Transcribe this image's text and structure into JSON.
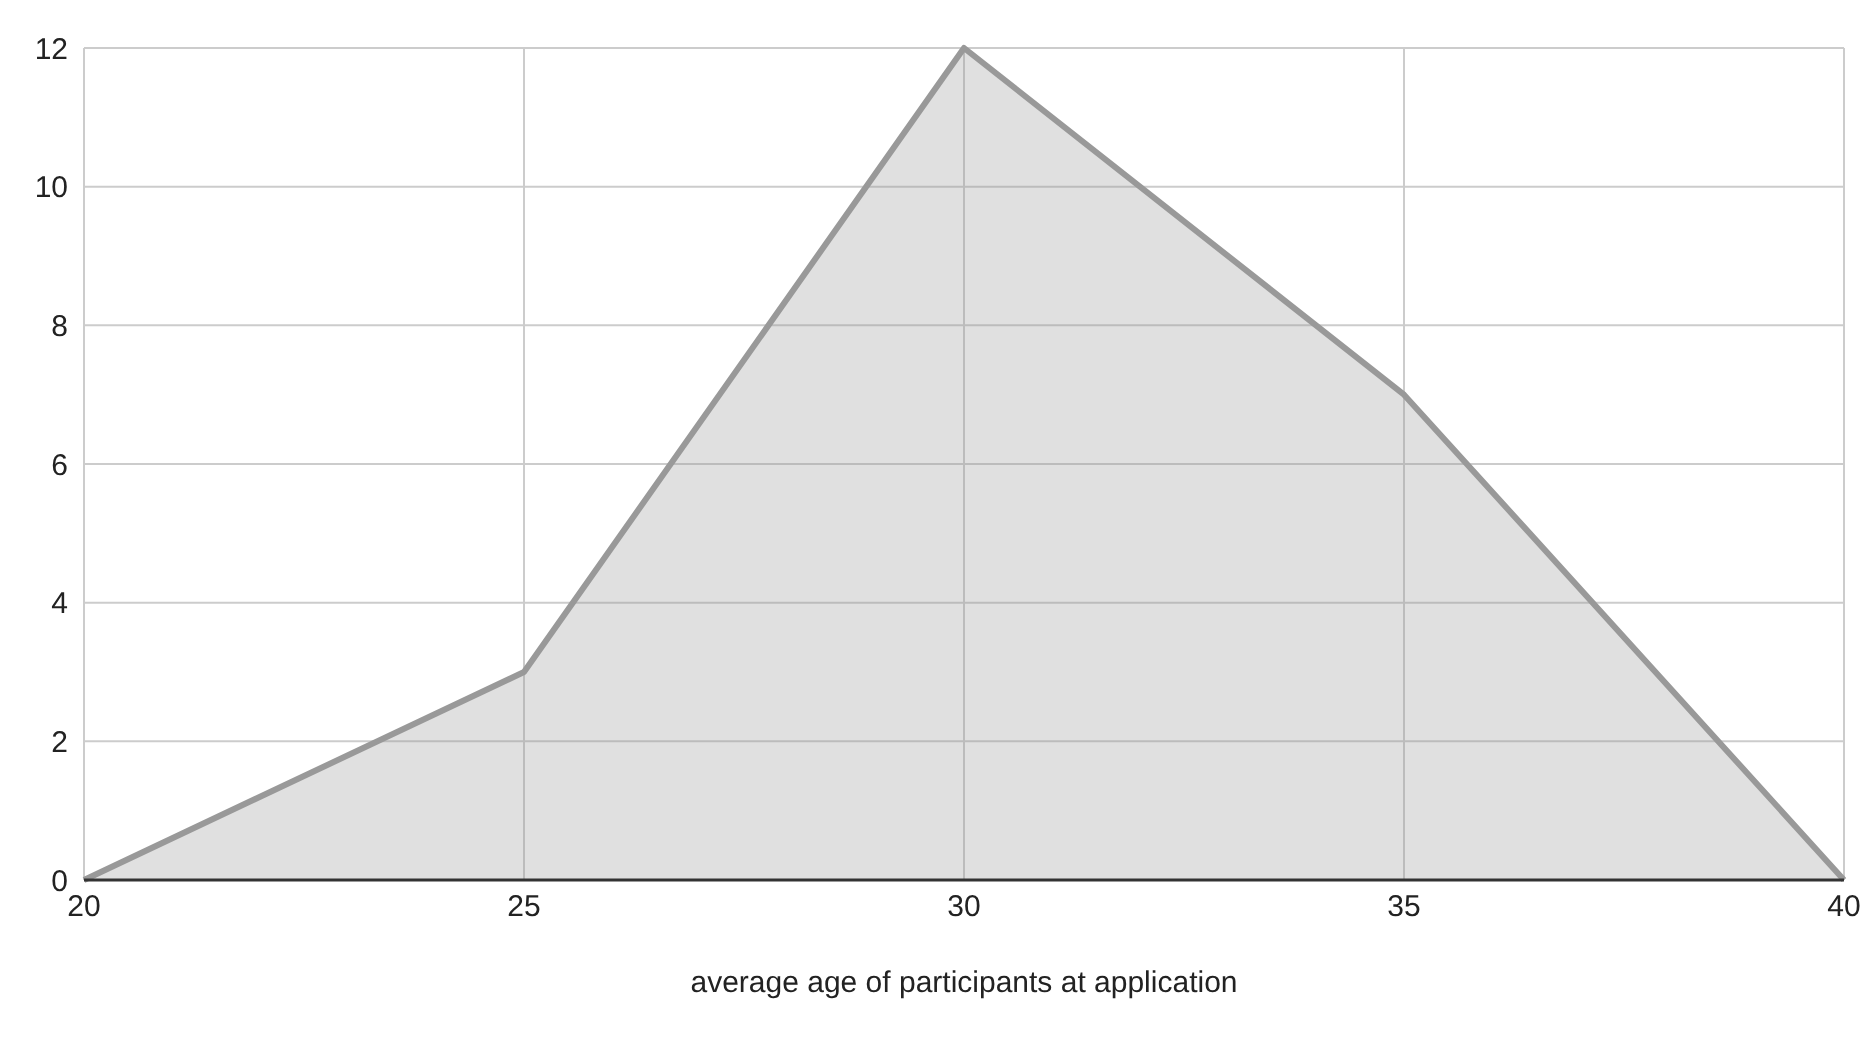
{
  "chart_data": {
    "type": "area",
    "xlabel": "average age of participants at application",
    "x": [
      20,
      25,
      30,
      35,
      40
    ],
    "series": [
      {
        "color": "#999999",
        "values": [
          0,
          3,
          12,
          7,
          0
        ]
      }
    ],
    "xlim": [
      20,
      40
    ],
    "xticks": [
      20,
      25,
      30,
      35,
      40
    ],
    "ylim": [
      0,
      12
    ],
    "yticks": [
      0,
      2,
      4,
      6,
      8,
      10,
      12
    ],
    "grid": true
  }
}
